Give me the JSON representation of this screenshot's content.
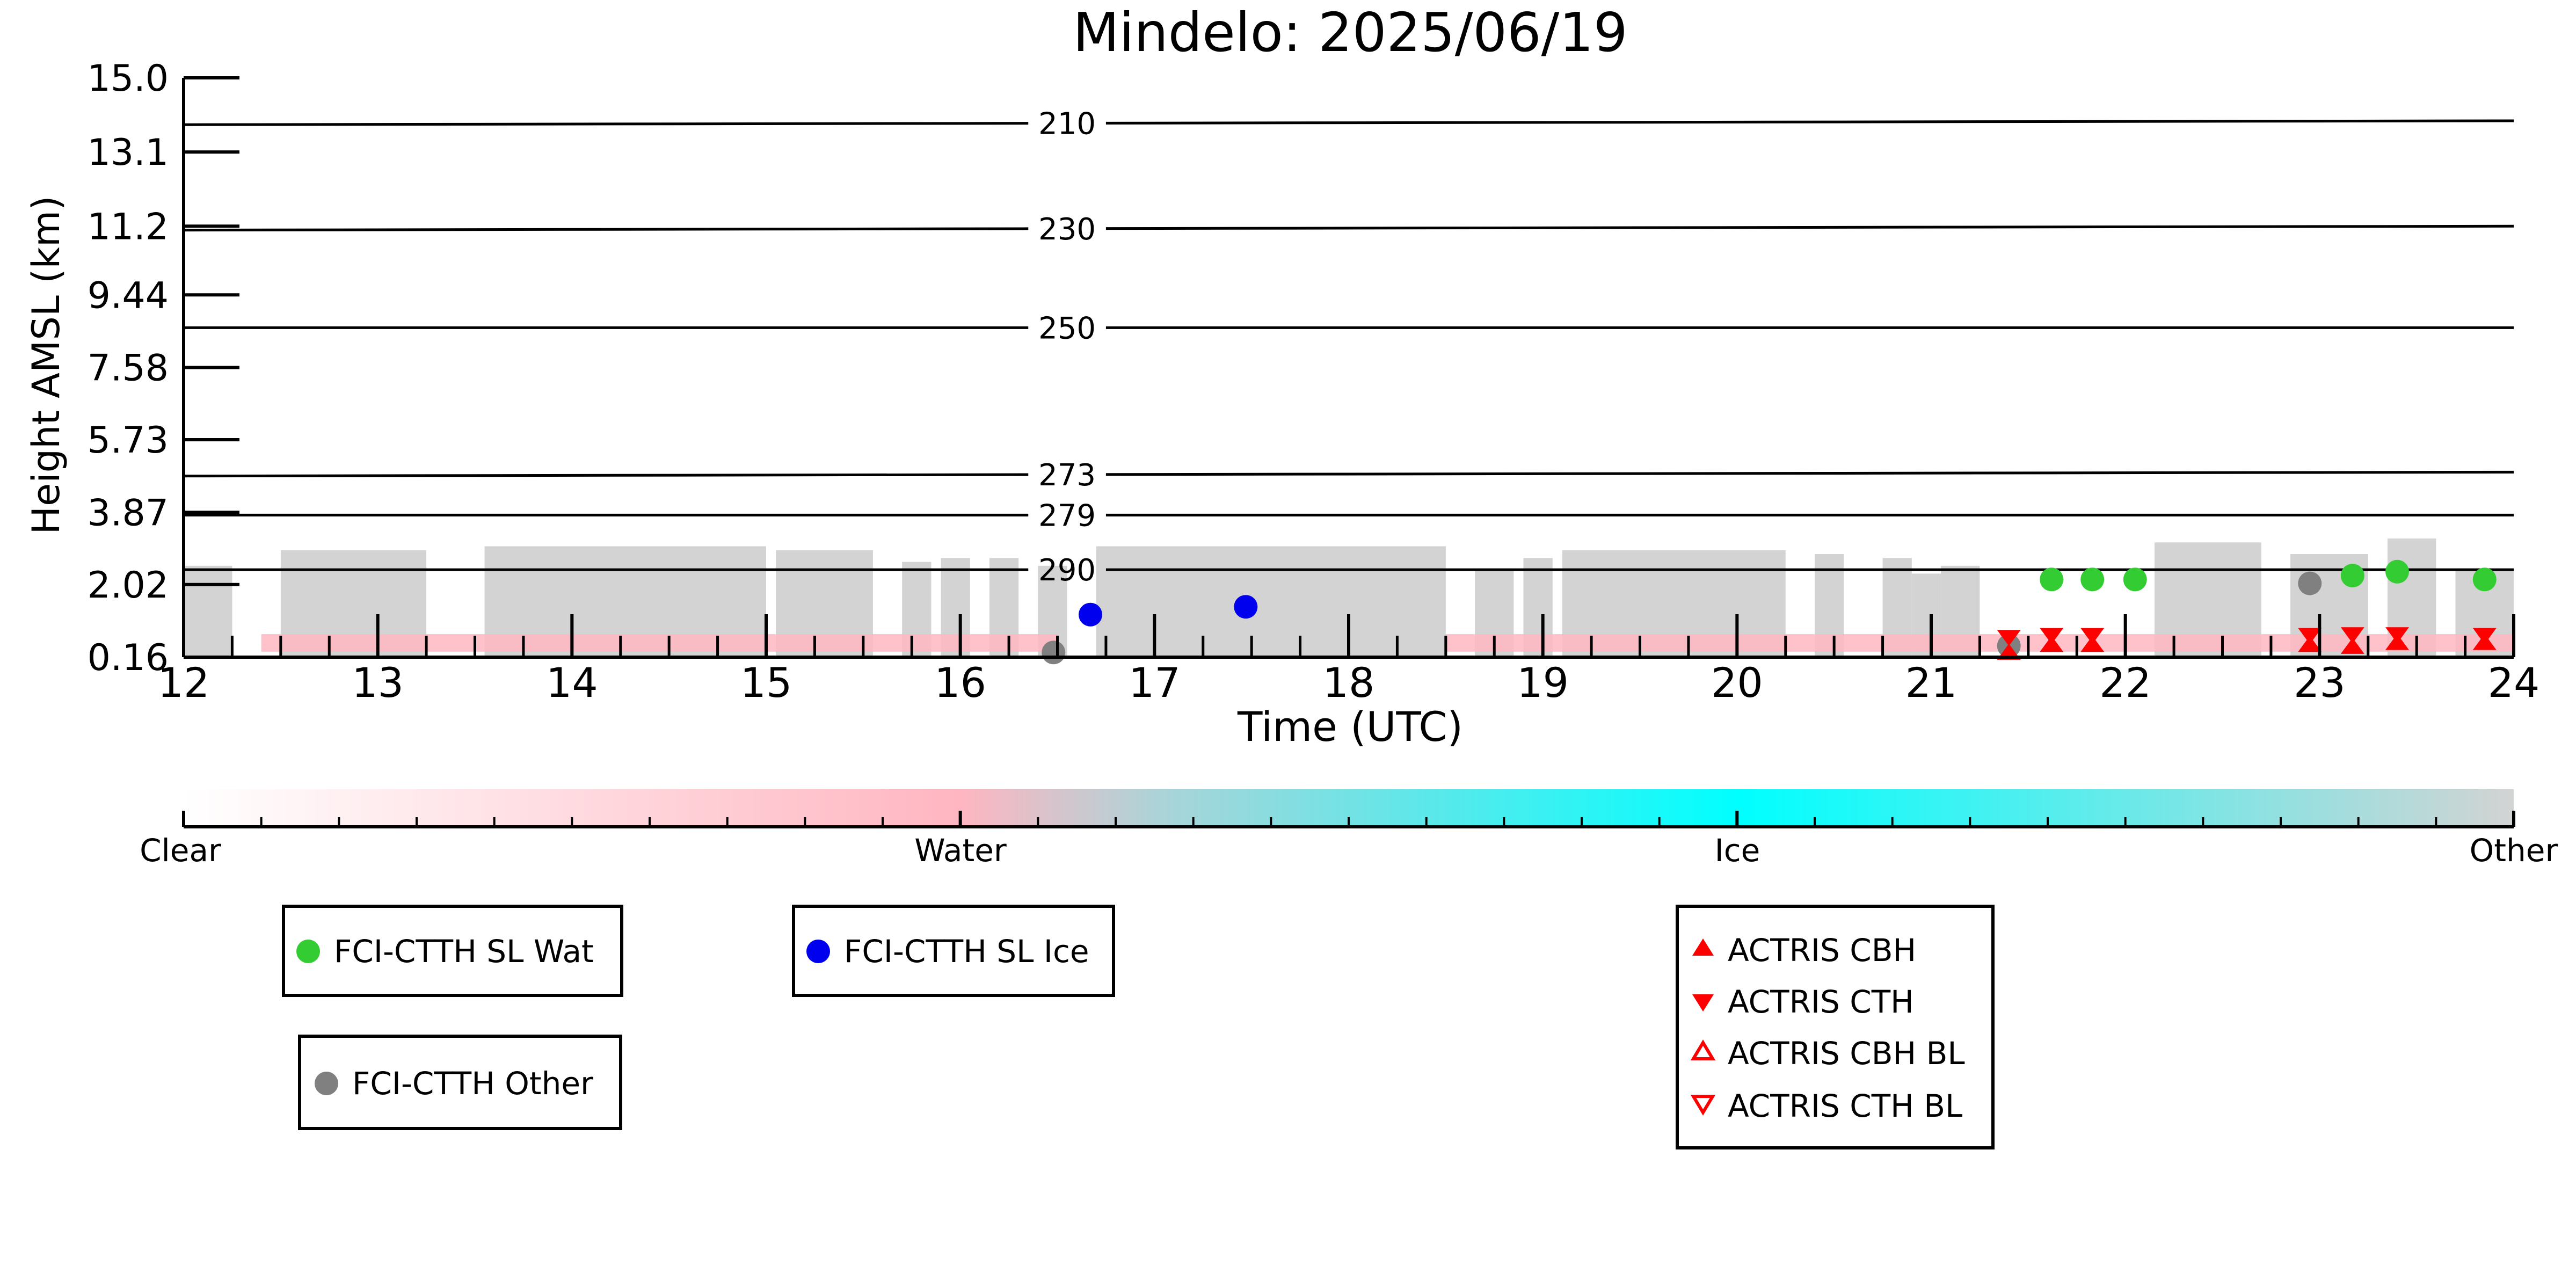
{
  "chart_data": {
    "type": "scatter",
    "title": "Mindelo: 2025/06/19",
    "xlabel": "Time (UTC)",
    "ylabel": "Height AMSL (km)",
    "xlim": [
      12,
      24
    ],
    "ylim": [
      0.16,
      15.0
    ],
    "x_ticks": [
      12,
      13,
      14,
      15,
      16,
      17,
      18,
      19,
      20,
      21,
      22,
      23,
      24
    ],
    "x_tick_labels": [
      "12",
      "13",
      "14",
      "15",
      "16",
      "17",
      "18",
      "19",
      "20",
      "21",
      "22",
      "23",
      "24"
    ],
    "y_ticks": [
      0.16,
      2.02,
      3.87,
      5.73,
      7.58,
      9.44,
      11.2,
      13.1,
      15.0
    ],
    "y_tick_labels": [
      "0.16",
      "2.02",
      "3.87",
      "5.73",
      "7.58",
      "9.44",
      "11.2",
      "13.1",
      "15.0"
    ],
    "grid": false,
    "isotherms": [
      {
        "label": "210",
        "y_start": 13.8,
        "y_end": 13.9
      },
      {
        "label": "230",
        "y_start": 11.1,
        "y_end": 11.2
      },
      {
        "label": "250",
        "y_start": 8.6,
        "y_end": 8.6
      },
      {
        "label": "273",
        "y_start": 4.8,
        "y_end": 4.9
      },
      {
        "label": "279",
        "y_start": 3.8,
        "y_end": 3.8
      },
      {
        "label": "290",
        "y_start": 2.4,
        "y_end": 2.4
      }
    ],
    "cloud_mask": {
      "color": "#d3d3d3",
      "segments": [
        {
          "x0": 12.0,
          "x1": 12.25,
          "top": 2.5
        },
        {
          "x0": 12.5,
          "x1": 13.25,
          "top": 2.9
        },
        {
          "x0": 13.55,
          "x1": 15.0,
          "top": 3.0
        },
        {
          "x0": 15.05,
          "x1": 15.55,
          "top": 2.9
        },
        {
          "x0": 15.7,
          "x1": 15.85,
          "top": 2.6
        },
        {
          "x0": 15.9,
          "x1": 16.05,
          "top": 2.7
        },
        {
          "x0": 16.15,
          "x1": 16.3,
          "top": 2.7
        },
        {
          "x0": 16.4,
          "x1": 16.55,
          "top": 2.5
        },
        {
          "x0": 16.7,
          "x1": 18.5,
          "top": 3.0
        },
        {
          "x0": 18.65,
          "x1": 18.85,
          "top": 2.4
        },
        {
          "x0": 18.9,
          "x1": 19.05,
          "top": 2.7
        },
        {
          "x0": 19.1,
          "x1": 20.25,
          "top": 2.9
        },
        {
          "x0": 20.4,
          "x1": 20.55,
          "top": 2.8
        },
        {
          "x0": 20.75,
          "x1": 20.9,
          "top": 2.7
        },
        {
          "x0": 20.9,
          "x1": 21.05,
          "top": 2.3
        },
        {
          "x0": 21.05,
          "x1": 21.25,
          "top": 2.5
        },
        {
          "x0": 22.15,
          "x1": 22.7,
          "top": 3.1
        },
        {
          "x0": 22.85,
          "x1": 23.25,
          "top": 2.8
        },
        {
          "x0": 23.35,
          "x1": 23.6,
          "top": 3.2
        },
        {
          "x0": 23.7,
          "x1": 24.0,
          "top": 2.4
        }
      ]
    },
    "water_band": {
      "color": "#ffb6c1",
      "y0": 0.3,
      "y1": 0.75
    },
    "series": [
      {
        "name": "FCI-CTTH SL Wat",
        "marker": "circle",
        "color": "#33cc33",
        "filled": true,
        "x": [
          21.62,
          21.83,
          22.05,
          23.17,
          23.4,
          23.85
        ],
        "y": [
          2.15,
          2.15,
          2.15,
          2.25,
          2.35,
          2.15
        ]
      },
      {
        "name": "FCI-CTTH SL Ice",
        "marker": "circle",
        "color": "#0000ee",
        "filled": true,
        "x": [
          16.67,
          17.47
        ],
        "y": [
          1.25,
          1.45
        ]
      },
      {
        "name": "FCI-CTTH Other",
        "marker": "circle",
        "color": "#808080",
        "filled": true,
        "x": [
          16.48,
          21.4,
          22.95
        ],
        "y": [
          0.28,
          0.45,
          2.05
        ]
      },
      {
        "name": "ACTRIS CBH",
        "marker": "triangle-up",
        "color": "#ff0000",
        "filled": true,
        "x": [
          21.4,
          21.62,
          21.83,
          22.95,
          23.17,
          23.4,
          23.85
        ],
        "y": [
          0.3,
          0.5,
          0.5,
          0.5,
          0.45,
          0.55,
          0.55
        ]
      },
      {
        "name": "ACTRIS CTH",
        "marker": "triangle-down",
        "color": "#ff0000",
        "filled": true,
        "x": [
          21.4,
          21.62,
          21.83,
          22.95,
          23.17,
          23.4,
          23.85
        ],
        "y": [
          0.65,
          0.7,
          0.7,
          0.7,
          0.72,
          0.72,
          0.7
        ]
      },
      {
        "name": "ACTRIS CBH BL",
        "marker": "triangle-up",
        "color": "#ff0000",
        "filled": false,
        "x": [],
        "y": []
      },
      {
        "name": "ACTRIS CTH BL",
        "marker": "triangle-down",
        "color": "#ff0000",
        "filled": false,
        "x": [],
        "y": []
      }
    ],
    "colorbar": {
      "labels": [
        "Clear",
        "Water",
        "Ice",
        "Other"
      ],
      "stops": [
        {
          "offset": 0.0,
          "color": "#ffffff"
        },
        {
          "offset": 0.333,
          "color": "#ffb6c1"
        },
        {
          "offset": 0.42,
          "color": "#aad4d8"
        },
        {
          "offset": 0.667,
          "color": "#00ffff"
        },
        {
          "offset": 1.0,
          "color": "#d3d3d3"
        }
      ]
    }
  }
}
